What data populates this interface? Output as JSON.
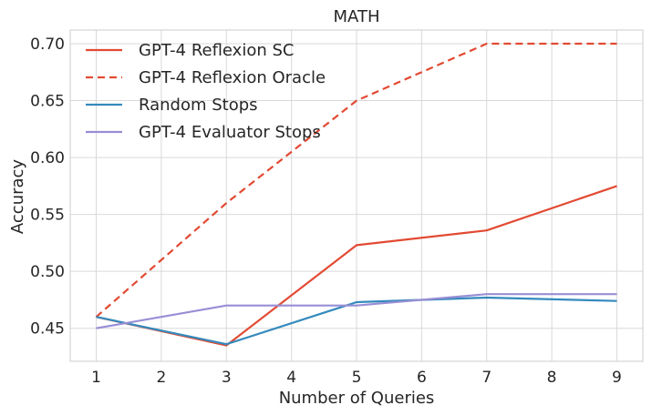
{
  "chart_data": {
    "type": "line",
    "title": "MATH",
    "xlabel": "Number of Queries",
    "ylabel": "Accuracy",
    "xlim": [
      0.6,
      9.4
    ],
    "ylim": [
      0.421,
      0.712
    ],
    "x_ticks": [
      1,
      2,
      3,
      4,
      5,
      6,
      7,
      8,
      9
    ],
    "y_ticks": [
      0.45,
      0.5,
      0.55,
      0.6,
      0.65,
      0.7
    ],
    "y_tick_labels": [
      "0.45",
      "0.50",
      "0.55",
      "0.60",
      "0.65",
      "0.70"
    ],
    "grid": true,
    "legend_position": "top-left",
    "series": [
      {
        "name": "GPT-4 Reflexion SC",
        "color": "#e24a33",
        "dash": "solid",
        "x": [
          1,
          3,
          5,
          7,
          9
        ],
        "y": [
          0.46,
          0.435,
          0.523,
          0.536,
          0.575
        ]
      },
      {
        "name": "GPT-4 Reflexion Oracle",
        "color": "#e24a33",
        "dash": "dashed",
        "x": [
          1,
          3,
          5,
          7,
          9
        ],
        "y": [
          0.46,
          0.56,
          0.65,
          0.7,
          0.7
        ]
      },
      {
        "name": "Random Stops",
        "color": "#348abd",
        "dash": "solid",
        "x": [
          1,
          3,
          5,
          7,
          9
        ],
        "y": [
          0.46,
          0.436,
          0.473,
          0.477,
          0.474
        ]
      },
      {
        "name": "GPT-4 Evaluator Stops",
        "color": "#988ed5",
        "dash": "solid",
        "x": [
          1,
          3,
          5,
          7,
          9
        ],
        "y": [
          0.45,
          0.47,
          0.47,
          0.48,
          0.48
        ]
      }
    ]
  }
}
